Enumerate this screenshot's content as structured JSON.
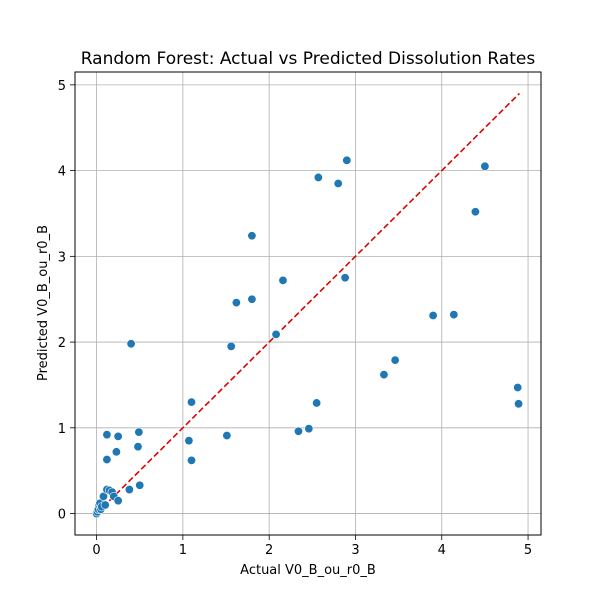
{
  "chart_data": {
    "type": "scatter",
    "title": "Random Forest: Actual vs Predicted Dissolution Rates",
    "xlabel": "Actual V0_B_ou_r0_B",
    "ylabel": "Predicted V0_B_ou_r0_B",
    "xlim": [
      -0.25,
      5.15
    ],
    "ylim": [
      -0.25,
      5.15
    ],
    "xticks": [
      0,
      1,
      2,
      3,
      4,
      5
    ],
    "yticks": [
      0,
      1,
      2,
      3,
      4,
      5
    ],
    "grid": true,
    "point_color": "#1f77b4",
    "reference_line": {
      "x": [
        0,
        4.9
      ],
      "y": [
        0,
        4.9
      ],
      "color": "#e00000",
      "style": "dashed"
    },
    "points": [
      {
        "x": 0.0,
        "y": 0.0
      },
      {
        "x": 0.01,
        "y": 0.02
      },
      {
        "x": 0.02,
        "y": 0.05
      },
      {
        "x": 0.03,
        "y": 0.1
      },
      {
        "x": 0.04,
        "y": 0.12
      },
      {
        "x": 0.05,
        "y": 0.05
      },
      {
        "x": 0.06,
        "y": 0.08
      },
      {
        "x": 0.08,
        "y": 0.2
      },
      {
        "x": 0.1,
        "y": 0.1
      },
      {
        "x": 0.12,
        "y": 0.28
      },
      {
        "x": 0.12,
        "y": 0.63
      },
      {
        "x": 0.12,
        "y": 0.92
      },
      {
        "x": 0.15,
        "y": 0.27
      },
      {
        "x": 0.18,
        "y": 0.25
      },
      {
        "x": 0.2,
        "y": 0.2
      },
      {
        "x": 0.23,
        "y": 0.72
      },
      {
        "x": 0.25,
        "y": 0.9
      },
      {
        "x": 0.25,
        "y": 0.15
      },
      {
        "x": 0.38,
        "y": 0.28
      },
      {
        "x": 0.4,
        "y": 1.98
      },
      {
        "x": 0.48,
        "y": 0.78
      },
      {
        "x": 0.49,
        "y": 0.95
      },
      {
        "x": 0.5,
        "y": 0.33
      },
      {
        "x": 1.07,
        "y": 0.85
      },
      {
        "x": 1.1,
        "y": 0.62
      },
      {
        "x": 1.1,
        "y": 1.3
      },
      {
        "x": 1.51,
        "y": 0.91
      },
      {
        "x": 1.56,
        "y": 1.95
      },
      {
        "x": 1.62,
        "y": 2.46
      },
      {
        "x": 1.8,
        "y": 3.24
      },
      {
        "x": 1.8,
        "y": 2.5
      },
      {
        "x": 2.08,
        "y": 2.09
      },
      {
        "x": 2.16,
        "y": 2.72
      },
      {
        "x": 2.34,
        "y": 0.96
      },
      {
        "x": 2.46,
        "y": 0.99
      },
      {
        "x": 2.55,
        "y": 1.29
      },
      {
        "x": 2.57,
        "y": 3.92
      },
      {
        "x": 2.8,
        "y": 3.85
      },
      {
        "x": 2.88,
        "y": 2.75
      },
      {
        "x": 2.9,
        "y": 4.12
      },
      {
        "x": 3.33,
        "y": 1.62
      },
      {
        "x": 3.46,
        "y": 1.79
      },
      {
        "x": 3.9,
        "y": 2.31
      },
      {
        "x": 4.14,
        "y": 2.32
      },
      {
        "x": 4.39,
        "y": 3.52
      },
      {
        "x": 4.5,
        "y": 4.05
      },
      {
        "x": 4.88,
        "y": 1.47
      },
      {
        "x": 4.89,
        "y": 1.28
      }
    ]
  }
}
